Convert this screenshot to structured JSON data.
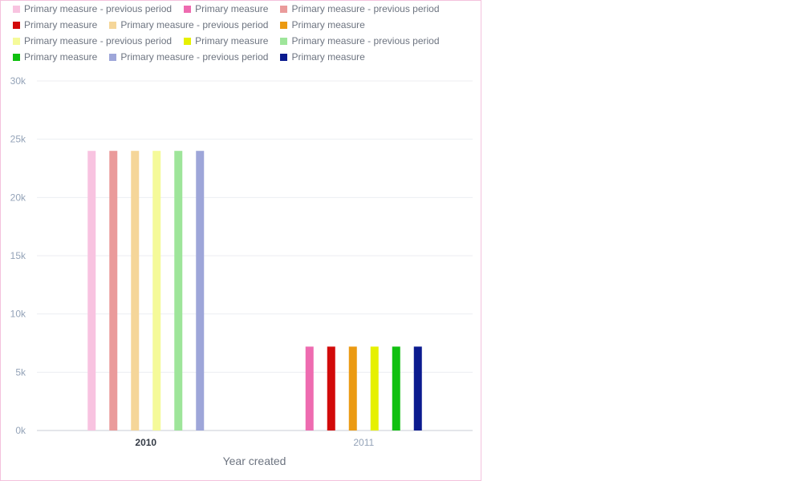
{
  "chart_data": {
    "type": "bar",
    "categories": [
      "2010",
      "2011"
    ],
    "highlighted_category": "2010",
    "xlabel": "Year created",
    "ylabel": "",
    "ylim": [
      0,
      30000
    ],
    "y_ticks": [
      0,
      5000,
      10000,
      15000,
      20000,
      25000,
      30000
    ],
    "y_tick_labels": [
      "0k",
      "5k",
      "10k",
      "15k",
      "20k",
      "25k",
      "30k"
    ],
    "grid": true,
    "legend_position": "top",
    "series": [
      {
        "name": "Primary measure - previous period",
        "color": "#f8c3e0",
        "values": [
          24000,
          null
        ]
      },
      {
        "name": "Primary measure",
        "color": "#ee6bb0",
        "values": [
          null,
          7200
        ]
      },
      {
        "name": "Primary measure - previous period",
        "color": "#ea9b9b",
        "values": [
          24000,
          null
        ]
      },
      {
        "name": "Primary measure",
        "color": "#d20a0a",
        "values": [
          null,
          7200
        ]
      },
      {
        "name": "Primary measure - previous period",
        "color": "#f5d699",
        "values": [
          24000,
          null
        ]
      },
      {
        "name": "Primary measure",
        "color": "#eb9a12",
        "values": [
          null,
          7200
        ]
      },
      {
        "name": "Primary measure - previous period",
        "color": "#f5fa99",
        "values": [
          24000,
          null
        ]
      },
      {
        "name": "Primary measure",
        "color": "#e6f000",
        "values": [
          null,
          7200
        ]
      },
      {
        "name": "Primary measure - previous period",
        "color": "#9ee59a",
        "values": [
          24000,
          null
        ]
      },
      {
        "name": "Primary measure",
        "color": "#10c010",
        "values": [
          null,
          7200
        ]
      },
      {
        "name": "Primary measure - previous period",
        "color": "#9ea6d9",
        "values": [
          24000,
          null
        ]
      },
      {
        "name": "Primary measure",
        "color": "#0b1b8f",
        "values": [
          null,
          7200
        ]
      }
    ]
  }
}
